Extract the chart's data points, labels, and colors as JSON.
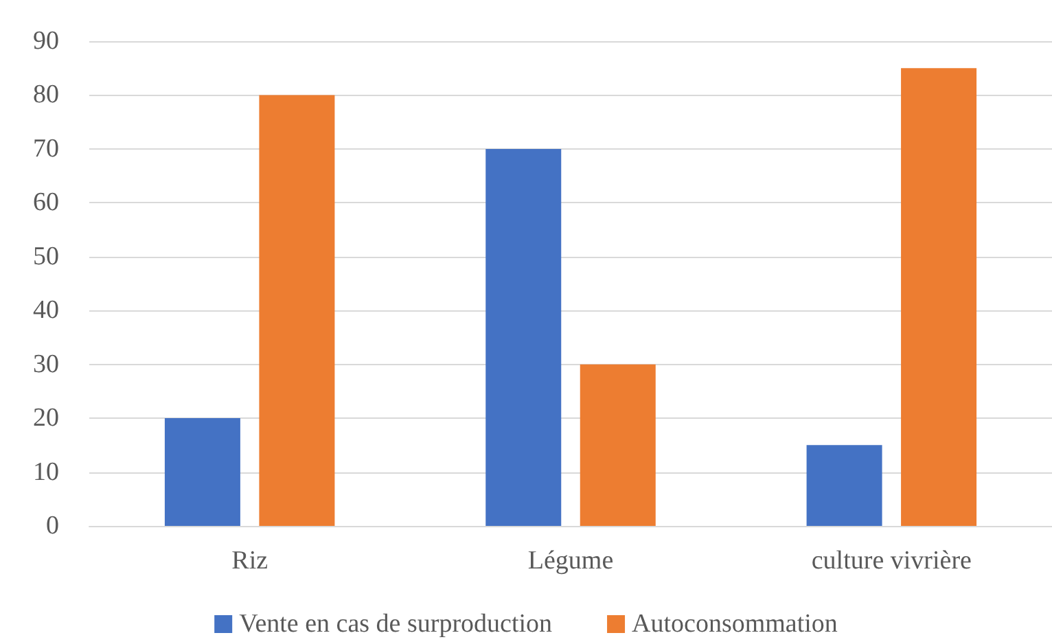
{
  "chart_data": {
    "type": "bar",
    "categories": [
      "Riz",
      "Légume",
      "culture vivrière"
    ],
    "series": [
      {
        "name": "Vente en cas de surproduction",
        "color": "#4472c4",
        "values": [
          20,
          70,
          15
        ]
      },
      {
        "name": "Autoconsommation",
        "color": "#ed7d31",
        "values": [
          80,
          30,
          85
        ]
      }
    ],
    "ylim": [
      0,
      90
    ],
    "yticks": [
      0,
      10,
      20,
      30,
      40,
      50,
      60,
      70,
      80,
      90
    ],
    "grid": "y",
    "legend": "bottom"
  }
}
